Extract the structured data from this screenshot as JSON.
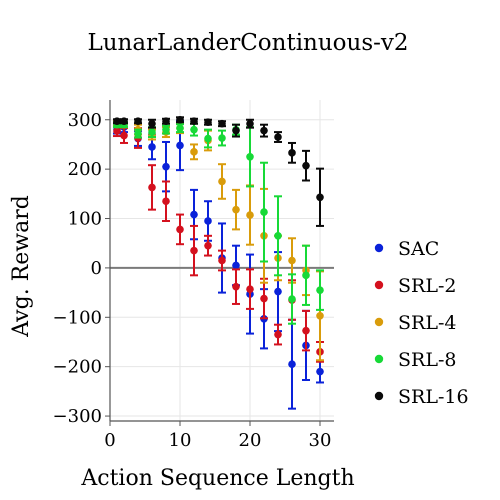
{
  "chart_data": {
    "type": "scatter",
    "title": "LunarLanderContinuous-v2",
    "xlabel": "Action Sequence Length",
    "ylabel": "Avg. Reward",
    "xlim": [
      0,
      32
    ],
    "ylim": [
      -310,
      340
    ],
    "xticks": [
      0,
      10,
      20,
      30
    ],
    "yticks": [
      -300,
      -200,
      -100,
      0,
      100,
      200,
      300
    ],
    "grid": true,
    "legend_position": "right",
    "x": [
      1,
      2,
      4,
      6,
      8,
      10,
      12,
      14,
      16,
      18,
      20,
      22,
      24,
      26,
      28,
      30
    ],
    "series": [
      {
        "name": "SAC",
        "color": "#0a22d9",
        "y": [
          280,
          285,
          262,
          245,
          205,
          248,
          108,
          95,
          20,
          5,
          -53,
          -103,
          -48,
          -195,
          -157,
          -210
        ],
        "err": [
          8,
          10,
          15,
          25,
          50,
          50,
          50,
          40,
          70,
          40,
          80,
          60,
          80,
          90,
          70,
          22
        ]
      },
      {
        "name": "SRL-2",
        "color": "#d4111e",
        "y": [
          277,
          268,
          263,
          163,
          135,
          78,
          35,
          45,
          15,
          -38,
          -43,
          -62,
          -135,
          -65,
          -127,
          -170
        ],
        "err": [
          10,
          15,
          20,
          45,
          40,
          30,
          50,
          20,
          20,
          35,
          40,
          40,
          20,
          40,
          40,
          20
        ]
      },
      {
        "name": "SRL-4",
        "color": "#d99c0b",
        "y": [
          293,
          290,
          280,
          270,
          275,
          283,
          235,
          258,
          175,
          118,
          107,
          65,
          20,
          15,
          -5,
          -97
        ],
        "err": [
          5,
          5,
          10,
          10,
          10,
          10,
          15,
          20,
          35,
          40,
          60,
          95,
          45,
          45,
          50,
          90
        ]
      },
      {
        "name": "SRL-8",
        "color": "#17d937",
        "y": [
          290,
          290,
          272,
          275,
          280,
          283,
          280,
          262,
          263,
          280,
          225,
          113,
          65,
          -63,
          -15,
          -45
        ],
        "err": [
          5,
          5,
          8,
          10,
          8,
          8,
          12,
          18,
          15,
          10,
          60,
          100,
          80,
          50,
          60,
          40
        ]
      },
      {
        "name": "SRL-16",
        "color": "#0a0a0a",
        "y": [
          297,
          297,
          297,
          292,
          297,
          300,
          297,
          295,
          292,
          278,
          292,
          278,
          265,
          233,
          207,
          143
        ],
        "err": [
          4,
          4,
          4,
          8,
          5,
          5,
          5,
          5,
          5,
          12,
          8,
          12,
          10,
          20,
          30,
          58
        ]
      }
    ]
  }
}
